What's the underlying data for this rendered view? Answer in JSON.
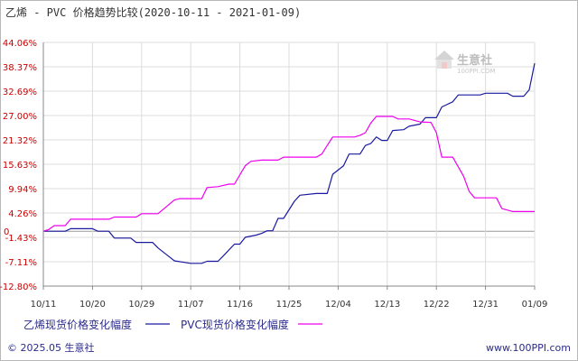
{
  "title": "乙烯 - PVC 价格趋势比较(2020-10-11 - 2021-01-09)",
  "footer": {
    "copyright": "© 2025.05 生意社",
    "url": "www.100PPI.com"
  },
  "watermark": {
    "brand": "生意社",
    "domain": "100PPI.COM"
  },
  "colors": {
    "series1": "#1a1aa0",
    "series2": "#ee00ee",
    "ytick": "#cc0000",
    "grid": "#dddddd",
    "axis": "#888888",
    "legend_text": "#2b2b8a"
  },
  "chart_data": {
    "type": "line",
    "yticks": [
      "44.06%",
      "38.37%",
      "32.69%",
      "27.00%",
      "21.32%",
      "15.63%",
      "9.94%",
      "4.26%",
      "-1.43%",
      "-7.11%",
      "-12.80%"
    ],
    "ytick_values": [
      44.06,
      38.37,
      32.69,
      27.0,
      21.32,
      15.63,
      9.94,
      4.26,
      -1.43,
      -7.11,
      -12.8
    ],
    "ylim": [
      -12.8,
      44.06
    ],
    "zero_label": "0",
    "xticks": [
      "10/11",
      "10/20",
      "10/29",
      "11/07",
      "11/16",
      "11/25",
      "12/04",
      "12/13",
      "12/22",
      "12/31",
      "01/09"
    ],
    "xlim": [
      "2020-10-11",
      "2021-01-09"
    ],
    "grid": true,
    "legend_position": "bottom-left",
    "series": [
      {
        "name": "乙烯现货价格变化幅度",
        "color": "#1a1aa0",
        "points": [
          [
            "2020-10-11",
            0.0
          ],
          [
            "2020-10-15",
            0.0
          ],
          [
            "2020-10-16",
            0.6
          ],
          [
            "2020-10-20",
            0.6
          ],
          [
            "2020-10-21",
            0.0
          ],
          [
            "2020-10-23",
            0.0
          ],
          [
            "2020-10-24",
            -1.6
          ],
          [
            "2020-10-27",
            -1.6
          ],
          [
            "2020-10-28",
            -2.6
          ],
          [
            "2020-10-31",
            -2.6
          ],
          [
            "2020-11-01",
            -3.9
          ],
          [
            "2020-11-03",
            -5.9
          ],
          [
            "2020-11-04",
            -6.9
          ],
          [
            "2020-11-07",
            -7.5
          ],
          [
            "2020-11-09",
            -7.5
          ],
          [
            "2020-11-10",
            -7.0
          ],
          [
            "2020-11-12",
            -7.0
          ],
          [
            "2020-11-13",
            -5.7
          ],
          [
            "2020-11-15",
            -3.0
          ],
          [
            "2020-11-16",
            -3.0
          ],
          [
            "2020-11-17",
            -1.4
          ],
          [
            "2020-11-19",
            -0.9
          ],
          [
            "2020-11-20",
            -0.5
          ],
          [
            "2020-11-21",
            0.1
          ],
          [
            "2020-11-22",
            0.1
          ],
          [
            "2020-11-23",
            3.0
          ],
          [
            "2020-11-24",
            3.0
          ],
          [
            "2020-11-26",
            7.0
          ],
          [
            "2020-11-27",
            8.4
          ],
          [
            "2020-11-30",
            8.8
          ],
          [
            "2020-12-02",
            8.8
          ],
          [
            "2020-12-03",
            13.3
          ],
          [
            "2020-12-05",
            15.3
          ],
          [
            "2020-12-06",
            18.0
          ],
          [
            "2020-12-08",
            18.0
          ],
          [
            "2020-12-09",
            20.0
          ],
          [
            "2020-12-10",
            20.5
          ],
          [
            "2020-12-11",
            22.0
          ],
          [
            "2020-12-12",
            21.2
          ],
          [
            "2020-12-13",
            21.2
          ],
          [
            "2020-12-14",
            23.5
          ],
          [
            "2020-12-16",
            23.7
          ],
          [
            "2020-12-17",
            24.5
          ],
          [
            "2020-12-19",
            25.0
          ],
          [
            "2020-12-20",
            26.5
          ],
          [
            "2020-12-22",
            26.5
          ],
          [
            "2020-12-23",
            29.0
          ],
          [
            "2020-12-25",
            30.2
          ],
          [
            "2020-12-26",
            31.8
          ],
          [
            "2020-12-30",
            31.8
          ],
          [
            "2020-12-31",
            32.2
          ],
          [
            "2021-01-04",
            32.2
          ],
          [
            "2021-01-05",
            31.5
          ],
          [
            "2021-01-07",
            31.5
          ],
          [
            "2021-01-08",
            33.0
          ],
          [
            "2021-01-09",
            39.2
          ]
        ]
      },
      {
        "name": "PVC现货价格变化幅度",
        "color": "#ee00ee",
        "points": [
          [
            "2020-10-11",
            0.0
          ],
          [
            "2020-10-12",
            0.4
          ],
          [
            "2020-10-13",
            1.3
          ],
          [
            "2020-10-15",
            1.3
          ],
          [
            "2020-10-16",
            2.8
          ],
          [
            "2020-10-19",
            2.8
          ],
          [
            "2020-10-23",
            2.8
          ],
          [
            "2020-10-24",
            3.3
          ],
          [
            "2020-10-28",
            3.3
          ],
          [
            "2020-10-29",
            4.1
          ],
          [
            "2020-11-01",
            4.1
          ],
          [
            "2020-11-04",
            7.3
          ],
          [
            "2020-11-05",
            7.6
          ],
          [
            "2020-11-09",
            7.6
          ],
          [
            "2020-11-10",
            10.2
          ],
          [
            "2020-11-12",
            10.4
          ],
          [
            "2020-11-14",
            11.0
          ],
          [
            "2020-11-15",
            11.0
          ],
          [
            "2020-11-17",
            15.3
          ],
          [
            "2020-11-18",
            16.3
          ],
          [
            "2020-11-20",
            16.6
          ],
          [
            "2020-11-23",
            16.6
          ],
          [
            "2020-11-24",
            17.3
          ],
          [
            "2020-11-30",
            17.3
          ],
          [
            "2020-12-01",
            18.0
          ],
          [
            "2020-12-02",
            20.0
          ],
          [
            "2020-12-03",
            22.0
          ],
          [
            "2020-12-07",
            22.0
          ],
          [
            "2020-12-08",
            22.4
          ],
          [
            "2020-12-09",
            23.0
          ],
          [
            "2020-12-10",
            25.3
          ],
          [
            "2020-12-11",
            26.8
          ],
          [
            "2020-12-14",
            26.8
          ],
          [
            "2020-12-15",
            26.2
          ],
          [
            "2020-12-17",
            26.2
          ],
          [
            "2020-12-19",
            25.5
          ],
          [
            "2020-12-21",
            25.4
          ],
          [
            "2020-12-22",
            23.0
          ],
          [
            "2020-12-23",
            17.3
          ],
          [
            "2020-12-25",
            17.3
          ],
          [
            "2020-12-27",
            12.8
          ],
          [
            "2020-12-28",
            9.3
          ],
          [
            "2020-12-29",
            7.8
          ],
          [
            "2021-01-02",
            7.8
          ],
          [
            "2021-01-03",
            5.3
          ],
          [
            "2021-01-05",
            4.6
          ],
          [
            "2021-01-09",
            4.6
          ]
        ]
      }
    ]
  }
}
